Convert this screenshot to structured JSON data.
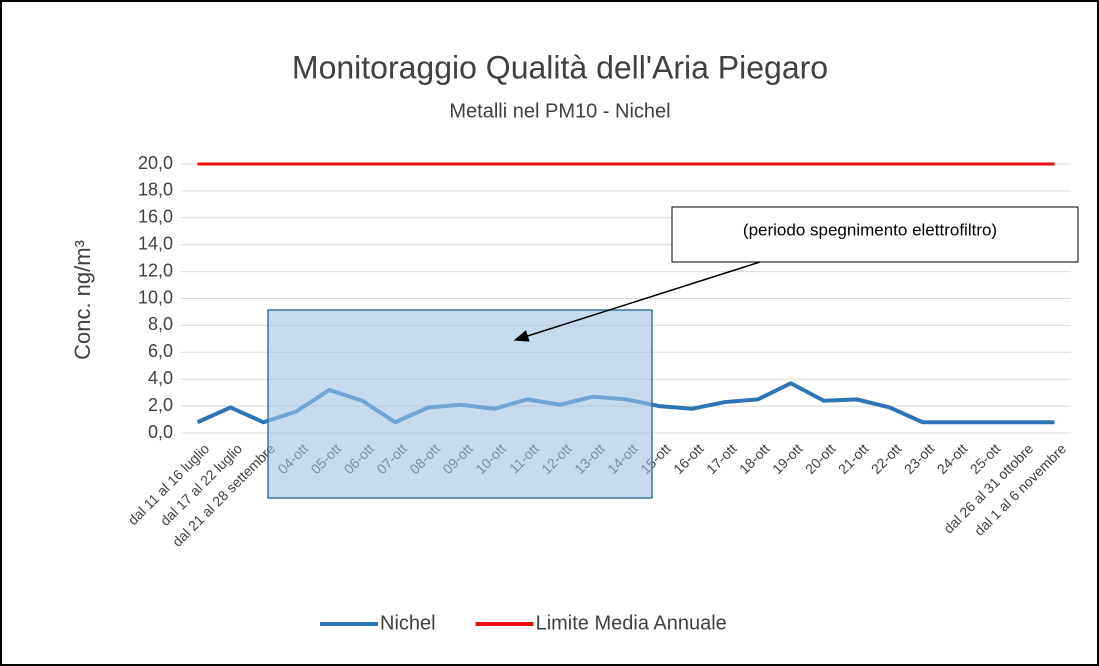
{
  "chart_data": {
    "type": "line",
    "title": "Monitoraggio Qualità dell'Aria Piegaro",
    "subtitle": "Metalli nel PM10 - Nichel",
    "y_label": "Conc.  ng/m³",
    "annotation": "(periodo spegnimento elettrofiltro)",
    "categories": [
      "dal 11 al 16 luglio",
      "dal 17 al 22 luglio",
      "dal 21 al 28 settembre",
      "04-ott",
      "05-ott",
      "06-ott",
      "07-ott",
      "08-ott",
      "09-ott",
      "10-ott",
      "11-ott",
      "12-ott",
      "13-ott",
      "14-ott",
      "15-ott",
      "16-ott",
      "17-ott",
      "18-ott",
      "19-ott",
      "20-ott",
      "21-ott",
      "22-ott",
      "23-ott",
      "24-ott",
      "25-ott",
      "dal 26 al 31 ottobre",
      "dal 1 al 6 novembre"
    ],
    "series": [
      {
        "name": "Nichel",
        "color": "#2e75b6",
        "values": [
          0.8,
          1.9,
          0.8,
          1.6,
          3.2,
          2.4,
          0.8,
          1.9,
          2.1,
          1.8,
          2.5,
          2.1,
          2.7,
          2.5,
          2.0,
          1.8,
          2.3,
          2.5,
          3.7,
          2.4,
          2.5,
          1.9,
          0.8,
          0.8,
          0.8,
          0.8,
          0.8
        ]
      },
      {
        "name": "Limite Media Annuale",
        "color": "#e81010",
        "values": [
          20,
          20,
          20,
          20,
          20,
          20,
          20,
          20,
          20,
          20,
          20,
          20,
          20,
          20,
          20,
          20,
          20,
          20,
          20,
          20,
          20,
          20,
          20,
          20,
          20,
          20,
          20
        ]
      }
    ],
    "ylim": [
      0,
      20
    ],
    "yticks": [
      {
        "value": 0,
        "label": "0,0"
      },
      {
        "value": 2,
        "label": "2,0"
      },
      {
        "value": 4,
        "label": "4,0"
      },
      {
        "value": 6,
        "label": "6,0"
      },
      {
        "value": 8,
        "label": "8,0"
      },
      {
        "value": 10,
        "label": "10,0"
      },
      {
        "value": 12,
        "label": "12,0"
      },
      {
        "value": 14,
        "label": "14,0"
      },
      {
        "value": 16,
        "label": "16,0"
      },
      {
        "value": 18,
        "label": "18,0"
      },
      {
        "value": 20,
        "label": "20,0"
      }
    ],
    "grid": true,
    "legend": "bottom"
  }
}
